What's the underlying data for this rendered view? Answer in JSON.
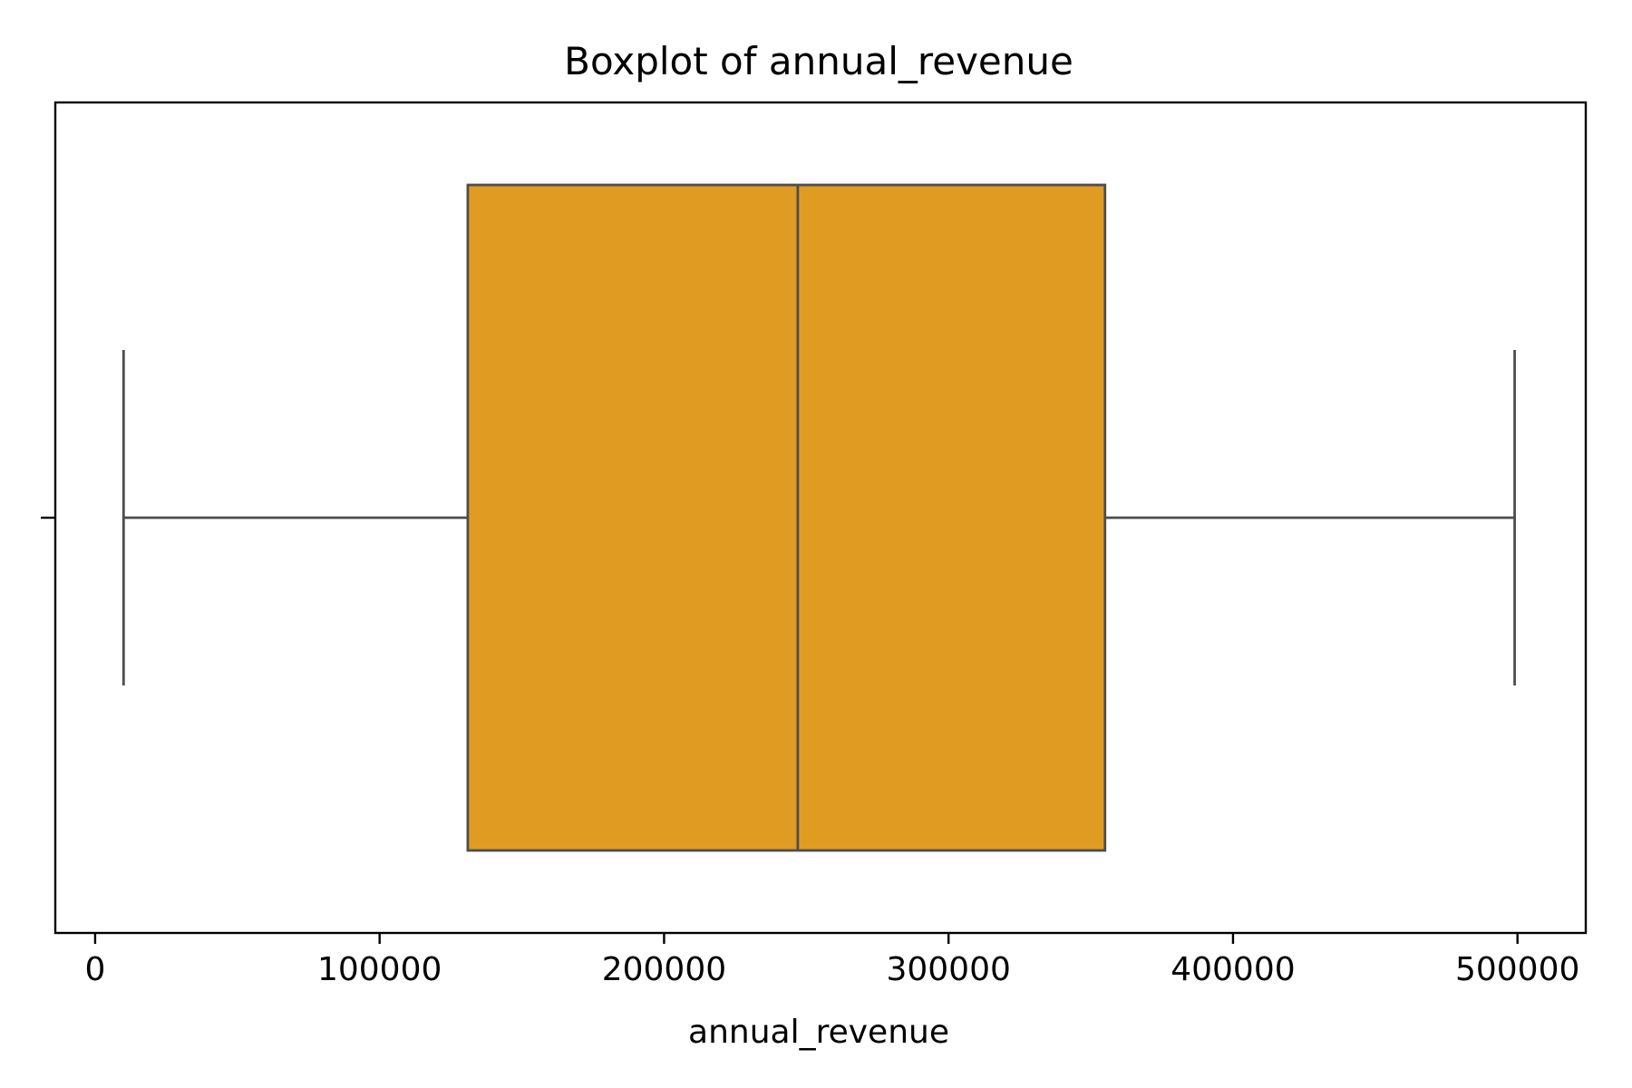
{
  "chart_data": {
    "type": "box",
    "orientation": "horizontal",
    "title": "Boxplot of annual_revenue",
    "xlabel": "annual_revenue",
    "ylabel": "",
    "xlim": [
      -14000,
      524000
    ],
    "xticks": [
      0,
      100000,
      200000,
      300000,
      400000,
      500000
    ],
    "xtick_labels": [
      "0",
      "100000",
      "200000",
      "300000",
      "400000",
      "500000"
    ],
    "grid": false,
    "legend": "none",
    "series": [
      {
        "whisker_low": 10000,
        "q1": 131000,
        "median": 247000,
        "q3": 355000,
        "whisker_high": 499000,
        "outliers": []
      }
    ],
    "colors": {
      "box_fill": "#e09c22",
      "line": "#4d4d4d",
      "axes": "#000000",
      "background": "#ffffff"
    }
  }
}
